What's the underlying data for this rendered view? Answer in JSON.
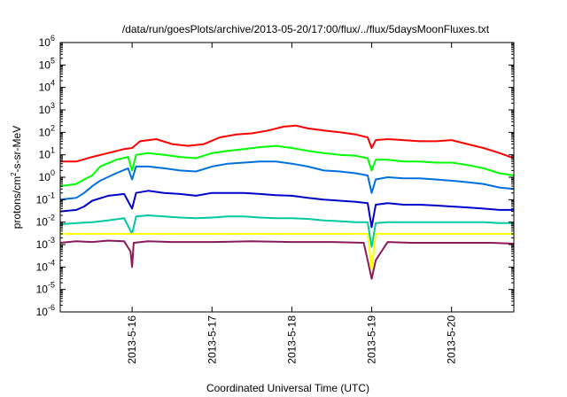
{
  "chart_data": {
    "type": "line",
    "title": "/data/run/goesPlots/archive/2013-05-20/17:00/flux/../flux/5daysMoonFluxes.txt",
    "xlabel": "Coordinated Universal Time (UTC)",
    "ylabel_parts": [
      "protons/cm",
      "2",
      "-s-sr-MeV"
    ],
    "y_scale": "log",
    "ylim": [
      1e-06,
      1000000.0
    ],
    "xlim_days": [
      15.1,
      20.78
    ],
    "grid": false,
    "legend": "none",
    "x_ticks": [
      {
        "day": 16,
        "label": "2013-5-16"
      },
      {
        "day": 17,
        "label": "2013-5-17"
      },
      {
        "day": 18,
        "label": "2013-5-18"
      },
      {
        "day": 19,
        "label": "2013-5-19"
      },
      {
        "day": 20,
        "label": "2013-5-20"
      }
    ],
    "y_ticks": [
      {
        "exp": -6,
        "base": "10",
        "sup": "-6"
      },
      {
        "exp": -5,
        "base": "10",
        "sup": "-5"
      },
      {
        "exp": -4,
        "base": "10",
        "sup": "-4"
      },
      {
        "exp": -3,
        "base": "10",
        "sup": "-3"
      },
      {
        "exp": -2,
        "base": "10",
        "sup": "-2"
      },
      {
        "exp": -1,
        "base": "10",
        "sup": "-1"
      },
      {
        "exp": 0,
        "base": "10",
        "sup": "0"
      },
      {
        "exp": 1,
        "base": "10",
        "sup": "1"
      },
      {
        "exp": 2,
        "base": "10",
        "sup": "2"
      },
      {
        "exp": 3,
        "base": "10",
        "sup": "3"
      },
      {
        "exp": 4,
        "base": "10",
        "sup": "4"
      },
      {
        "exp": 5,
        "base": "10",
        "sup": "5"
      },
      {
        "exp": 6,
        "base": "10",
        "sup": "6"
      }
    ],
    "series": [
      {
        "color": "#ff0000",
        "x": [
          15.1,
          15.3,
          15.5,
          15.7,
          15.9,
          16.0,
          16.1,
          16.3,
          16.5,
          16.7,
          16.9,
          17.1,
          17.3,
          17.5,
          17.7,
          17.9,
          18.05,
          18.2,
          18.4,
          18.6,
          18.8,
          18.95,
          19.0,
          19.05,
          19.2,
          19.4,
          19.6,
          19.8,
          20.0,
          20.2,
          20.4,
          20.6,
          20.78
        ],
        "y": [
          5,
          5,
          8,
          12,
          18,
          20,
          40,
          50,
          30,
          25,
          30,
          60,
          80,
          90,
          120,
          180,
          200,
          150,
          120,
          100,
          80,
          60,
          20,
          45,
          50,
          45,
          40,
          40,
          45,
          30,
          20,
          12,
          7
        ]
      },
      {
        "color": "#00ff00",
        "x": [
          15.1,
          15.3,
          15.4,
          15.5,
          15.6,
          15.8,
          15.95,
          16.0,
          16.05,
          16.2,
          16.4,
          16.6,
          16.8,
          17.0,
          17.2,
          17.4,
          17.6,
          17.8,
          18.0,
          18.2,
          18.4,
          18.6,
          18.8,
          18.95,
          19.0,
          19.05,
          19.2,
          19.4,
          19.6,
          19.8,
          20.0,
          20.2,
          20.4,
          20.6,
          20.78
        ],
        "y": [
          0.4,
          0.5,
          0.8,
          1.2,
          3,
          6,
          8,
          2,
          10,
          12,
          10,
          8,
          7,
          12,
          15,
          18,
          22,
          25,
          20,
          15,
          12,
          10,
          9,
          7,
          2,
          6,
          6,
          5,
          5,
          4.5,
          4.5,
          3.5,
          2.5,
          1.5,
          1.2
        ]
      },
      {
        "color": "#0070e0",
        "x": [
          15.1,
          15.3,
          15.4,
          15.5,
          15.6,
          15.8,
          15.95,
          16.0,
          16.05,
          16.2,
          16.4,
          16.6,
          16.8,
          17.0,
          17.2,
          17.4,
          17.6,
          17.8,
          18.0,
          18.2,
          18.4,
          18.6,
          18.8,
          18.95,
          19.0,
          19.05,
          19.2,
          19.4,
          19.6,
          19.8,
          20.0,
          20.2,
          20.4,
          20.6,
          20.78
        ],
        "y": [
          0.1,
          0.12,
          0.2,
          0.4,
          0.7,
          1.5,
          2.5,
          0.8,
          3,
          3,
          2.5,
          2,
          1.8,
          3,
          4,
          4.5,
          5,
          5,
          4,
          3,
          2,
          1.8,
          1.5,
          1.2,
          0.2,
          0.8,
          1,
          0.9,
          0.9,
          0.8,
          0.7,
          0.6,
          0.5,
          0.35,
          0.3
        ]
      },
      {
        "color": "#0000cc",
        "x": [
          15.1,
          15.3,
          15.4,
          15.5,
          15.7,
          15.9,
          16.0,
          16.05,
          16.2,
          16.4,
          16.6,
          16.8,
          17.0,
          17.2,
          17.4,
          17.6,
          17.8,
          18.0,
          18.2,
          18.4,
          18.6,
          18.8,
          18.95,
          19.0,
          19.05,
          19.2,
          19.4,
          19.6,
          19.8,
          20.0,
          20.2,
          20.4,
          20.6,
          20.78
        ],
        "y": [
          0.03,
          0.035,
          0.05,
          0.09,
          0.15,
          0.18,
          0.04,
          0.2,
          0.25,
          0.2,
          0.18,
          0.15,
          0.2,
          0.2,
          0.2,
          0.18,
          0.16,
          0.15,
          0.12,
          0.1,
          0.09,
          0.08,
          0.07,
          0.006,
          0.06,
          0.07,
          0.06,
          0.06,
          0.055,
          0.05,
          0.045,
          0.04,
          0.035,
          0.035
        ]
      },
      {
        "color": "#00c8a0",
        "x": [
          15.1,
          15.3,
          15.5,
          15.7,
          15.9,
          16.0,
          16.05,
          16.2,
          16.4,
          16.6,
          16.8,
          17.0,
          17.2,
          17.4,
          17.6,
          17.8,
          18.0,
          18.2,
          18.4,
          18.6,
          18.8,
          18.95,
          19.0,
          19.05,
          19.2,
          19.4,
          19.6,
          19.8,
          20.0,
          20.2,
          20.4,
          20.6,
          20.78
        ],
        "y": [
          0.008,
          0.009,
          0.01,
          0.012,
          0.015,
          0.003,
          0.018,
          0.02,
          0.018,
          0.016,
          0.015,
          0.016,
          0.018,
          0.018,
          0.016,
          0.015,
          0.015,
          0.014,
          0.012,
          0.011,
          0.01,
          0.01,
          0.0008,
          0.009,
          0.01,
          0.01,
          0.01,
          0.01,
          0.01,
          0.01,
          0.01,
          0.009,
          0.009
        ]
      },
      {
        "color": "#ffff00",
        "x": [
          15.1,
          15.5,
          16.0,
          16.5,
          17.0,
          17.5,
          18.0,
          18.5,
          18.95,
          19.0,
          19.05,
          19.5,
          20.0,
          20.5,
          20.78
        ],
        "y": [
          0.003,
          0.003,
          0.003,
          0.003,
          0.003,
          0.003,
          0.003,
          0.003,
          0.003,
          8e-05,
          0.003,
          0.003,
          0.003,
          0.003,
          0.003
        ]
      },
      {
        "color": "#8b1a5a",
        "x": [
          15.1,
          15.3,
          15.5,
          15.7,
          15.9,
          15.98,
          16.0,
          16.02,
          16.2,
          16.5,
          17.0,
          17.5,
          18.0,
          18.5,
          18.9,
          18.95,
          19.0,
          19.05,
          19.2,
          19.5,
          20.0,
          20.5,
          20.78
        ],
        "y": [
          0.0012,
          0.0014,
          0.0013,
          0.0015,
          0.0014,
          0.0005,
          0.0001,
          0.0012,
          0.0014,
          0.0013,
          0.0013,
          0.0014,
          0.0013,
          0.0013,
          0.0012,
          0.0002,
          3e-05,
          0.0002,
          0.0013,
          0.0012,
          0.0012,
          0.0012,
          0.0011
        ]
      }
    ]
  }
}
